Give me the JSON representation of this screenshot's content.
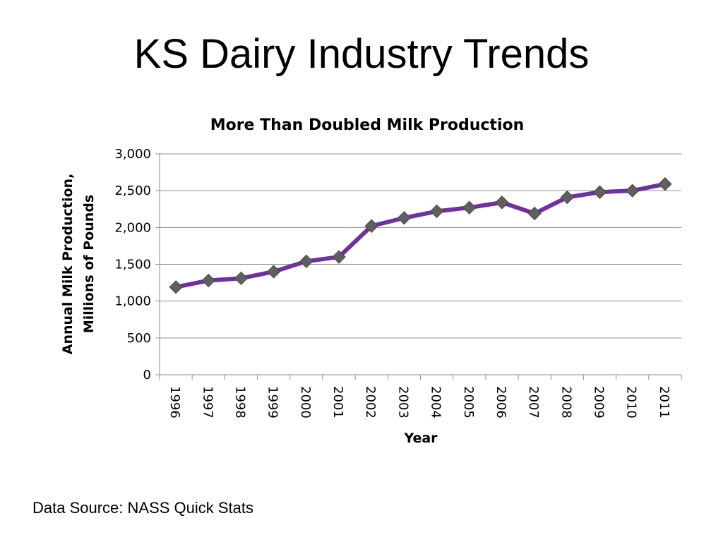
{
  "slide": {
    "title": "KS Dairy Industry Trends",
    "source": "Data Source: NASS Quick Stats"
  },
  "chart_data": {
    "type": "line",
    "title": "More Than Doubled Milk Production",
    "xlabel": "Year",
    "ylabel_lines": [
      "Annual Milk Production,",
      "Millions of Pounds"
    ],
    "x": [
      "1996",
      "1997",
      "1998",
      "1999",
      "2000",
      "2001",
      "2002",
      "2003",
      "2004",
      "2005",
      "2006",
      "2007",
      "2008",
      "2009",
      "2010",
      "2011"
    ],
    "series": [
      {
        "values": [
          1190,
          1280,
          1310,
          1400,
          1540,
          1600,
          2020,
          2130,
          2220,
          2270,
          2340,
          2190,
          2410,
          2480,
          2500,
          2590
        ]
      }
    ],
    "ylim": [
      0,
      3000
    ],
    "yticks": [
      0,
      500,
      1000,
      1500,
      2000,
      2500,
      3000
    ],
    "ytick_labels": [
      "0",
      "500",
      "1,000",
      "1,500",
      "2,000",
      "2,500",
      "3,000"
    ],
    "grid": true,
    "legend": "none",
    "line_color": "#7030A0",
    "marker_color": "#5F5F5F",
    "marker": "diamond"
  }
}
